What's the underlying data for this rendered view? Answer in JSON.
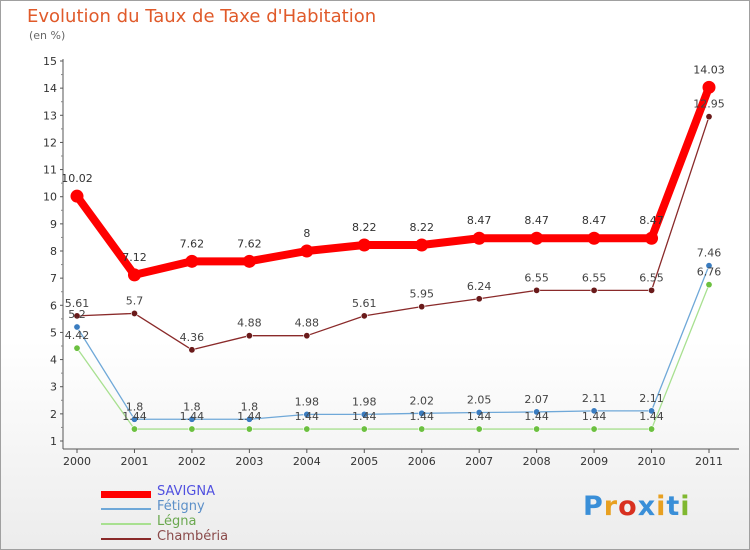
{
  "chart_data": {
    "type": "line",
    "title": "Evolution du Taux de Taxe d'Habitation",
    "unit_label": "(en %)",
    "xlabel": "",
    "ylabel": "",
    "x": [
      "2000",
      "2001",
      "2002",
      "2003",
      "2004",
      "2005",
      "2006",
      "2007",
      "2008",
      "2009",
      "2010",
      "2011"
    ],
    "ylim": [
      1,
      15
    ],
    "yticks": [
      1,
      2,
      3,
      4,
      5,
      6,
      7,
      8,
      9,
      10,
      11,
      12,
      13,
      14,
      15
    ],
    "grid": false,
    "legend_position": "bottom-left",
    "series": [
      {
        "name": "SAVIGNA",
        "color": "#ff0000",
        "label_color": "#5050e0",
        "values": [
          10.02,
          7.12,
          7.62,
          7.62,
          8,
          8.22,
          8.22,
          8.47,
          8.47,
          8.47,
          8.47,
          14.03
        ],
        "labels": [
          "10.02",
          "7.12",
          "7.62",
          "7.62",
          "8",
          "8.22",
          "8.22",
          "8.47",
          "8.47",
          "8.47",
          "8.47",
          "14.03"
        ]
      },
      {
        "name": "Fétigny",
        "color": "#6fa8d8",
        "marker_color": "#3a7cc0",
        "label_color": "#5b8fc8",
        "values": [
          5.2,
          1.8,
          1.8,
          1.8,
          1.98,
          1.98,
          2.02,
          2.05,
          2.07,
          2.11,
          2.11,
          7.46
        ],
        "labels": [
          "5.2",
          "1.8",
          "1.8",
          "1.8",
          "1.98",
          "1.98",
          "2.02",
          "2.05",
          "2.07",
          "2.11",
          "2.11",
          "7.46"
        ]
      },
      {
        "name": "Légna",
        "color": "#a8e090",
        "marker_color": "#6cc040",
        "label_color": "#6aa84f",
        "values": [
          4.42,
          1.44,
          1.44,
          1.44,
          1.44,
          1.44,
          1.44,
          1.44,
          1.44,
          1.44,
          1.44,
          6.76
        ],
        "labels": [
          "4.42",
          "1.44",
          "1.44",
          "1.44",
          "1.44",
          "1.44",
          "1.44",
          "1.44",
          "1.44",
          "1.44",
          "1.44",
          "6.76"
        ]
      },
      {
        "name": "Chambéria",
        "color": "#8a2a2a",
        "marker_color": "#6a1a1a",
        "label_color": "#8a4a4a",
        "values": [
          5.61,
          5.7,
          4.36,
          4.88,
          4.88,
          5.61,
          5.95,
          6.24,
          6.55,
          6.55,
          6.55,
          12.95
        ],
        "labels": [
          "5.61",
          "5.7",
          "4.36",
          "4.88",
          "4.88",
          "5.61",
          "5.95",
          "6.24",
          "6.55",
          "6.55",
          "6.55",
          "12.95"
        ]
      }
    ]
  },
  "brand": {
    "text": "Proxiti",
    "letter_colors": [
      "#3a8fd8",
      "#e8a020",
      "#d83020",
      "#3a8fd8",
      "#e8a020",
      "#3a8fd8",
      "#80b830"
    ]
  }
}
